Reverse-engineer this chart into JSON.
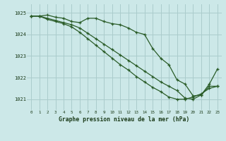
{
  "title": "Graphe pression niveau de la mer (hPa)",
  "background_color": "#cce8e8",
  "grid_color": "#aacccc",
  "line_color": "#2a5c28",
  "xlim": [
    -0.5,
    23.5
  ],
  "ylim": [
    1020.5,
    1025.4
  ],
  "yticks": [
    1021,
    1022,
    1023,
    1024,
    1025
  ],
  "xtick_labels": [
    "0",
    "1",
    "2",
    "3",
    "4",
    "5",
    "6",
    "7",
    "8",
    "9",
    "10",
    "11",
    "12",
    "13",
    "14",
    "15",
    "16",
    "17",
    "18",
    "19",
    "20",
    "21",
    "22",
    "23"
  ],
  "series": [
    {
      "x": [
        0,
        1,
        2,
        3,
        4,
        5,
        6,
        7,
        8,
        9,
        10,
        11,
        12,
        13,
        14,
        15,
        16,
        17,
        18,
        19,
        20,
        21,
        22,
        23
      ],
      "y": [
        1024.85,
        1024.85,
        1024.9,
        1024.8,
        1024.75,
        1024.6,
        1024.55,
        1024.75,
        1024.75,
        1024.6,
        1024.5,
        1024.45,
        1024.3,
        1024.1,
        1024.0,
        1023.35,
        1022.9,
        1022.6,
        1021.9,
        1021.7,
        1021.15,
        1021.2,
        1021.7,
        1022.4
      ]
    },
    {
      "x": [
        0,
        1,
        2,
        3,
        4,
        5,
        6,
        7,
        8,
        9,
        10,
        11,
        12,
        13,
        14,
        15,
        16,
        17,
        18,
        19,
        20,
        21,
        22,
        23
      ],
      "y": [
        1024.85,
        1024.85,
        1024.75,
        1024.65,
        1024.55,
        1024.45,
        1024.3,
        1024.05,
        1023.8,
        1023.55,
        1023.3,
        1023.05,
        1022.8,
        1022.55,
        1022.3,
        1022.05,
        1021.8,
        1021.6,
        1021.4,
        1021.05,
        1021.0,
        1021.2,
        1021.6,
        1021.6
      ]
    },
    {
      "x": [
        0,
        1,
        2,
        3,
        4,
        5,
        6,
        7,
        8,
        9,
        10,
        11,
        12,
        13,
        14,
        15,
        16,
        17,
        18,
        19,
        20,
        21,
        22,
        23
      ],
      "y": [
        1024.85,
        1024.85,
        1024.7,
        1024.6,
        1024.5,
        1024.35,
        1024.1,
        1023.8,
        1023.5,
        1023.2,
        1022.9,
        1022.6,
        1022.35,
        1022.05,
        1021.8,
        1021.55,
        1021.35,
        1021.1,
        1021.0,
        1021.0,
        1021.1,
        1021.25,
        1021.5,
        1021.6
      ]
    }
  ]
}
